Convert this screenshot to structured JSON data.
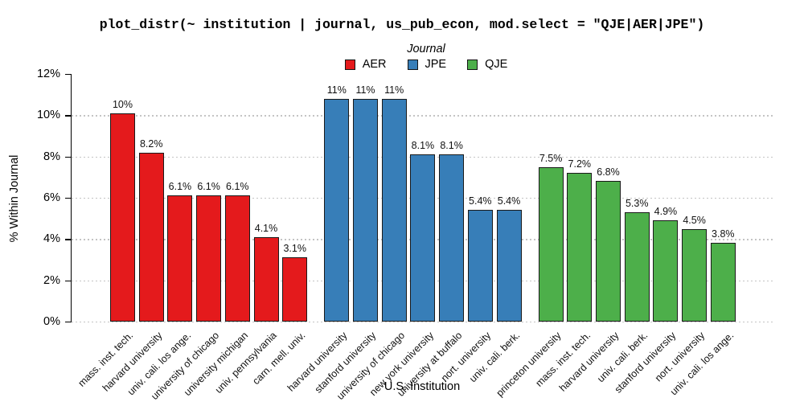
{
  "title": "plot_distr(~ institution | journal, us_pub_econ, mod.select = \"QJE|AER|JPE\")",
  "legend": {
    "title": "Journal",
    "entries": [
      {
        "label": "AER",
        "color": "#E41A1C"
      },
      {
        "label": "JPE",
        "color": "#377EB8"
      },
      {
        "label": "QJE",
        "color": "#4DAF4A"
      }
    ]
  },
  "chart_data": {
    "type": "bar",
    "title": "plot_distr(~ institution | journal, us_pub_econ, mod.select = \"QJE|AER|JPE\")",
    "xlabel": "U.S. Institution",
    "ylabel": "% Within Journal",
    "ylim": [
      0,
      12
    ],
    "yticks": [
      "0%",
      "2%",
      "4%",
      "6%",
      "8%",
      "10%",
      "12%"
    ],
    "grid": "horizontal dotted lines at 0%,2%,4%,6%,8%,10%",
    "legend_position": "top center",
    "colors": {
      "grid": "#c4c4c4",
      "bar_border": "#1a1a1a",
      "axis": "#000000"
    },
    "groups": [
      {
        "journal": "AER",
        "color": "#E41A1C",
        "bars": [
          {
            "institution": "mass. inst. tech.",
            "value": 10.1,
            "label": "10%"
          },
          {
            "institution": "harvard university",
            "value": 8.2,
            "label": "8.2%"
          },
          {
            "institution": "univ. cali. los ange.",
            "value": 6.1,
            "label": "6.1%"
          },
          {
            "institution": "university of chicago",
            "value": 6.1,
            "label": "6.1%"
          },
          {
            "institution": "university michigan",
            "value": 6.1,
            "label": "6.1%"
          },
          {
            "institution": "univ. pennsylvania",
            "value": 4.1,
            "label": "4.1%"
          },
          {
            "institution": "carn. mell. univ.",
            "value": 3.1,
            "label": "3.1%"
          }
        ]
      },
      {
        "journal": "JPE",
        "color": "#377EB8",
        "bars": [
          {
            "institution": "harvard university",
            "value": 10.8,
            "label": "11%"
          },
          {
            "institution": "stanford university",
            "value": 10.8,
            "label": "11%"
          },
          {
            "institution": "university of chicago",
            "value": 10.8,
            "label": "11%"
          },
          {
            "institution": "new york university",
            "value": 8.1,
            "label": "8.1%"
          },
          {
            "institution": "university at buffalo",
            "value": 8.1,
            "label": "8.1%"
          },
          {
            "institution": "nort. university",
            "value": 5.4,
            "label": "5.4%"
          },
          {
            "institution": "univ. cali. berk.",
            "value": 5.4,
            "label": "5.4%"
          }
        ]
      },
      {
        "journal": "QJE",
        "color": "#4DAF4A",
        "bars": [
          {
            "institution": "princeton university",
            "value": 7.5,
            "label": "7.5%"
          },
          {
            "institution": "mass. inst. tech.",
            "value": 7.2,
            "label": "7.2%"
          },
          {
            "institution": "harvard university",
            "value": 6.8,
            "label": "6.8%"
          },
          {
            "institution": "univ. cali. berk.",
            "value": 5.3,
            "label": "5.3%"
          },
          {
            "institution": "stanford university",
            "value": 4.9,
            "label": "4.9%"
          },
          {
            "institution": "nort. university",
            "value": 4.5,
            "label": "4.5%"
          },
          {
            "institution": "univ. cali. los ange.",
            "value": 3.8,
            "label": "3.8%"
          }
        ]
      }
    ]
  }
}
